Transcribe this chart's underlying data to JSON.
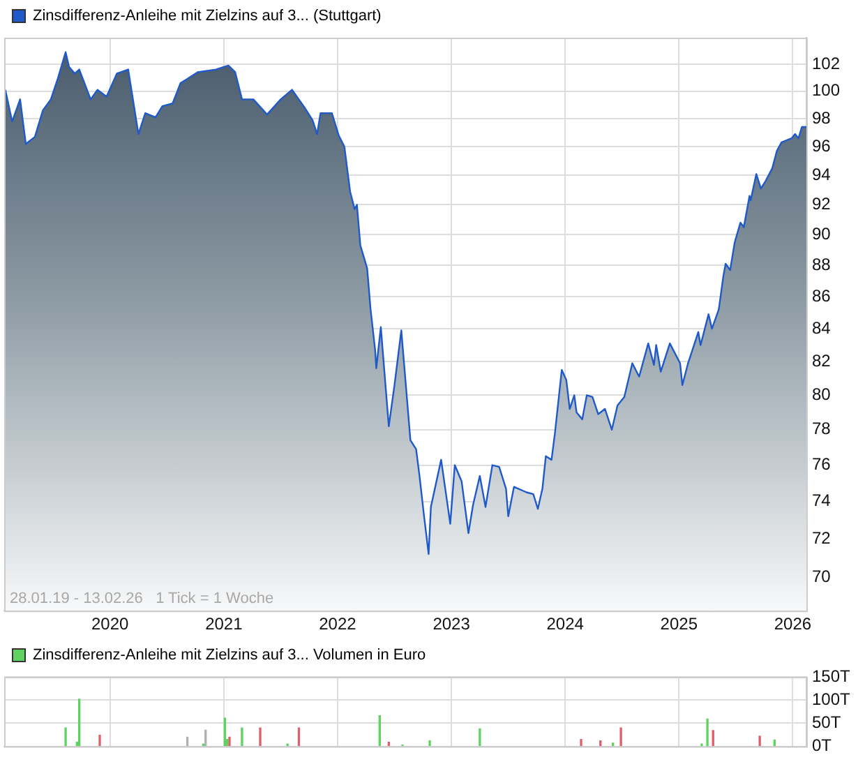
{
  "chart_data": [
    {
      "type": "area",
      "log": true,
      "legend": "top left",
      "grid": true,
      "xlim": [
        2019.07,
        2026.12
      ],
      "xticks": [
        2020,
        2021,
        2022,
        2023,
        2024,
        2025,
        2026
      ],
      "ylim": [
        68.3,
        104
      ],
      "yticks": [
        70,
        72,
        74,
        76,
        78,
        80,
        82,
        84,
        86,
        88,
        90,
        92,
        94,
        96,
        98,
        100,
        102
      ],
      "annotations": [
        "28.01.19 - 13.02.26   1 Tick = 1 Woche"
      ],
      "series": [
        {
          "name": "Zinsdifferenz-Anleihe mit Zielzins auf 3... (Stuttgart)",
          "color": "#1f5ac8",
          "x": [
            2019.08,
            2019.14,
            2019.21,
            2019.26,
            2019.34,
            2019.41,
            2019.48,
            2019.54,
            2019.61,
            2019.64,
            2019.69,
            2019.73,
            2019.83,
            2019.89,
            2019.97,
            2020.06,
            2020.16,
            2020.25,
            2020.31,
            2020.4,
            2020.46,
            2020.55,
            2020.62,
            2020.68,
            2020.77,
            2020.93,
            2021.04,
            2021.1,
            2021.16,
            2021.26,
            2021.38,
            2021.5,
            2021.6,
            2021.71,
            2021.78,
            2021.82,
            2021.85,
            2021.95,
            2022.01,
            2022.06,
            2022.11,
            2022.15,
            2022.17,
            2022.2,
            2022.26,
            2022.29,
            2022.33,
            2022.34,
            2022.38,
            2022.45,
            2022.5,
            2022.56,
            2022.64,
            2022.69,
            2022.72,
            2022.76,
            2022.8,
            2022.82,
            2022.91,
            2022.99,
            2023.03,
            2023.09,
            2023.15,
            2023.19,
            2023.25,
            2023.3,
            2023.36,
            2023.42,
            2023.48,
            2023.5,
            2023.55,
            2023.66,
            2023.72,
            2023.76,
            2023.8,
            2023.83,
            2023.88,
            2023.91,
            2023.97,
            2024.01,
            2024.04,
            2024.08,
            2024.1,
            2024.15,
            2024.19,
            2024.24,
            2024.29,
            2024.35,
            2024.41,
            2024.46,
            2024.52,
            2024.59,
            2024.65,
            2024.73,
            2024.78,
            2024.8,
            2024.84,
            2024.92,
            2025.01,
            2025.03,
            2025.08,
            2025.17,
            2025.19,
            2025.26,
            2025.29,
            2025.35,
            2025.39,
            2025.41,
            2025.45,
            2025.49,
            2025.54,
            2025.57,
            2025.62,
            2025.63,
            2025.68,
            2025.72,
            2025.76,
            2025.82,
            2025.86,
            2025.9,
            2025.99,
            2026.02,
            2026.05,
            2026.08,
            2026.12
          ],
          "values": [
            100.1,
            97.8,
            99.4,
            96.2,
            96.7,
            98.6,
            99.4,
            100.9,
            102.9,
            101.8,
            101.3,
            101.6,
            99.4,
            100.1,
            99.6,
            101.3,
            101.6,
            96.9,
            98.4,
            98.1,
            98.9,
            99.1,
            100.6,
            100.9,
            101.4,
            101.6,
            101.9,
            101.4,
            99.4,
            99.4,
            98.3,
            99.4,
            100.1,
            98.8,
            97.9,
            96.9,
            98.4,
            98.4,
            96.8,
            96.0,
            92.9,
            91.7,
            92.0,
            89.3,
            87.8,
            85.2,
            82.7,
            81.6,
            84.1,
            78.2,
            80.6,
            83.9,
            77.4,
            76.9,
            75.4,
            73.2,
            71.2,
            73.7,
            76.3,
            72.8,
            76.0,
            75.1,
            72.3,
            73.8,
            75.4,
            73.7,
            76.0,
            75.9,
            74.7,
            73.2,
            74.8,
            74.5,
            74.4,
            73.6,
            74.7,
            76.5,
            76.3,
            77.8,
            81.5,
            80.9,
            79.2,
            80.0,
            79.0,
            78.6,
            80.0,
            79.9,
            78.9,
            79.2,
            78.0,
            79.4,
            79.9,
            81.9,
            81.1,
            83.1,
            81.8,
            83.0,
            81.4,
            83.1,
            81.9,
            80.6,
            81.9,
            83.8,
            83.0,
            84.9,
            84.0,
            85.2,
            87.3,
            88.1,
            87.7,
            89.5,
            90.8,
            90.5,
            92.6,
            92.3,
            94.1,
            93.1,
            93.6,
            94.5,
            95.7,
            96.3,
            96.6,
            96.9,
            96.6,
            97.4,
            97.4
          ]
        }
      ]
    },
    {
      "type": "bar",
      "legend": "top left",
      "grid": true,
      "tick_labels": "y",
      "xlim": [
        2019.07,
        2026.12
      ],
      "xticks": [
        2020,
        2021,
        2022,
        2023,
        2024,
        2025,
        2026
      ],
      "ylim": [
        0,
        150
      ],
      "yticks": [
        {
          "value": 0,
          "label": "0T"
        },
        {
          "value": 50,
          "label": "50T"
        },
        {
          "value": 100,
          "label": "100T"
        },
        {
          "value": 150,
          "label": "150T"
        }
      ],
      "series": [
        {
          "name": "Zinsdifferenz-Anleihe mit Zielzins auf 3... Volumen in Euro",
          "color": "#5fd35f",
          "x": [
            2019.61,
            2019.71,
            2019.73,
            2019.91,
            2020.68,
            2020.82,
            2020.84,
            2021.01,
            2021.03,
            2021.05,
            2021.16,
            2021.32,
            2021.56,
            2021.66,
            2022.37,
            2022.45,
            2022.57,
            2022.81,
            2023.25,
            2024.14,
            2024.31,
            2024.42,
            2024.49,
            2025.2,
            2025.25,
            2025.3,
            2025.71,
            2025.84
          ],
          "values": [
            40,
            9,
            102,
            24,
            20,
            5,
            35,
            61,
            15,
            20,
            40,
            40,
            5,
            40,
            66,
            9,
            3,
            12,
            38,
            15,
            12,
            7,
            40,
            5,
            59,
            34,
            22,
            14
          ],
          "colors": [
            "#5fd35f",
            "#5fd35f",
            "#5fd35f",
            "#e0606a",
            "#b0b0b0",
            "#5fd35f",
            "#b0b0b0",
            "#5fd35f",
            "#5fd35f",
            "#e0606a",
            "#5fd35f",
            "#e0606a",
            "#5fd35f",
            "#e0606a",
            "#5fd35f",
            "#e0606a",
            "#5fd35f",
            "#5fd35f",
            "#5fd35f",
            "#e0606a",
            "#e0606a",
            "#5fd35f",
            "#e0606a",
            "#5fd35f",
            "#5fd35f",
            "#e0606a",
            "#e0606a",
            "#5fd35f"
          ]
        }
      ]
    }
  ]
}
